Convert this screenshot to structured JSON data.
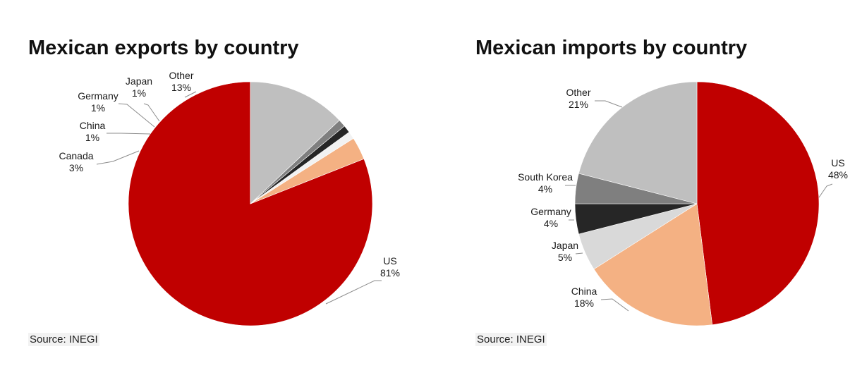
{
  "chart_data": [
    {
      "type": "pie",
      "title": "Mexican exports by country",
      "source": "Source: INEGI",
      "slices": [
        {
          "label": "US",
          "value": 81,
          "display": "81%",
          "color": "#c00000"
        },
        {
          "label": "Canada",
          "value": 3,
          "display": "3%",
          "color": "#f4b183"
        },
        {
          "label": "China",
          "value": 1,
          "display": "1%",
          "color": "#f2f2f2"
        },
        {
          "label": "Germany",
          "value": 1,
          "display": "1%",
          "color": "#262626"
        },
        {
          "label": "Japan",
          "value": 1,
          "display": "1%",
          "color": "#7f7f7f"
        },
        {
          "label": "Other",
          "value": 13,
          "display": "13%",
          "color": "#bfbfbf"
        }
      ]
    },
    {
      "type": "pie",
      "title": "Mexican imports by country",
      "source": "Source: INEGI",
      "slices": [
        {
          "label": "US",
          "value": 48,
          "display": "48%",
          "color": "#c00000"
        },
        {
          "label": "China",
          "value": 18,
          "display": "18%",
          "color": "#f4b183"
        },
        {
          "label": "Japan",
          "value": 5,
          "display": "5%",
          "color": "#d9d9d9"
        },
        {
          "label": "Germany",
          "value": 4,
          "display": "4%",
          "color": "#262626"
        },
        {
          "label": "South Korea",
          "value": 4,
          "display": "4%",
          "color": "#7f7f7f"
        },
        {
          "label": "Other",
          "value": 21,
          "display": "21%",
          "color": "#bfbfbf"
        }
      ]
    }
  ]
}
